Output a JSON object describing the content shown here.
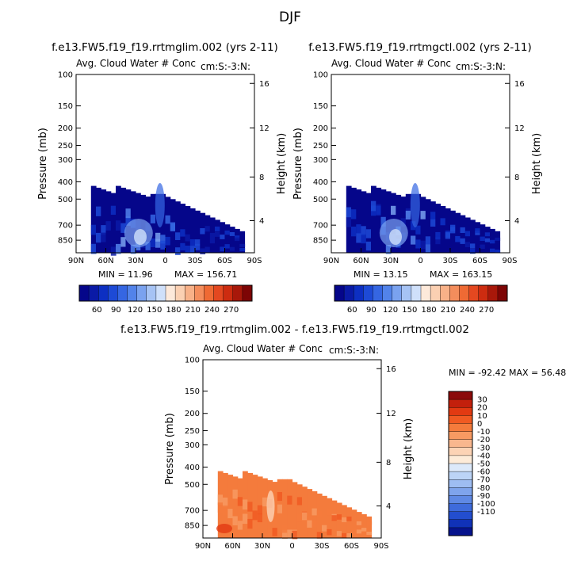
{
  "main_title": "DJF",
  "colors": {
    "blue_scale": [
      "#05068a",
      "#0a1aa6",
      "#0d2fc2",
      "#1d4ad6",
      "#3566e2",
      "#5283ea",
      "#7aa2ef",
      "#a6c3f4",
      "#cfe0fa",
      "#fde9da",
      "#fbd0b2",
      "#f8b188",
      "#f48d5c",
      "#ef6a34",
      "#e44820",
      "#cd2c10",
      "#a8180a",
      "#7d0505"
    ],
    "diff_scale": [
      "#8b0a0a",
      "#c3200c",
      "#e23a12",
      "#f05a22",
      "#f47b3c",
      "#f79a62",
      "#f9b78e",
      "#fcd3b5",
      "#fdebd8",
      "#dce9fa",
      "#bcd4f6",
      "#9ebdf2",
      "#7fa4ec",
      "#5f89e4",
      "#3e6bdb",
      "#234ecf",
      "#1032b8",
      "#06138c"
    ]
  },
  "chart_data": [
    {
      "type": "heatmap",
      "title": "f.e13.FW5.f19_f19.rrtmglim.002 (yrs 2-11)",
      "subtitle": "Avg. Cloud Water # Conc",
      "subtitle_right": "cm:S:-3:N:",
      "xlabel": "",
      "ylabel": "Pressure (mb)",
      "ylabel_right": "Height (km)",
      "x_ticks": [
        "90N",
        "60N",
        "30N",
        "0",
        "30S",
        "60S",
        "90S"
      ],
      "y_ticks": [
        "100",
        "150",
        "200",
        "250",
        "300",
        "400",
        "500",
        "700",
        "850"
      ],
      "y_right_ticks": [
        "16",
        "12",
        "8",
        "4"
      ],
      "min": "MIN = 11.96",
      "max": "MAX = 156.71",
      "colorbar_labels": [
        "60",
        "90",
        "120",
        "150",
        "180",
        "210",
        "240",
        "270"
      ],
      "grid": false
    },
    {
      "type": "heatmap",
      "title": "f.e13.FW5.f19_f19.rrtmgctl.002 (yrs 2-11)",
      "subtitle": "Avg. Cloud Water # Conc",
      "subtitle_right": "cm:S:-3:N:",
      "xlabel": "",
      "ylabel": "Pressure (mb)",
      "ylabel_right": "Height (km)",
      "x_ticks": [
        "90N",
        "60N",
        "30N",
        "0",
        "30S",
        "60S",
        "90S"
      ],
      "y_ticks": [
        "100",
        "150",
        "200",
        "250",
        "300",
        "400",
        "500",
        "700",
        "850"
      ],
      "y_right_ticks": [
        "16",
        "12",
        "8",
        "4"
      ],
      "min": "MIN = 13.15",
      "max": "MAX = 163.15",
      "colorbar_labels": [
        "60",
        "90",
        "120",
        "150",
        "180",
        "210",
        "240",
        "270"
      ],
      "grid": false
    },
    {
      "type": "heatmap",
      "title": "f.e13.FW5.f19_f19.rrtmglim.002 - f.e13.FW5.f19_f19.rrtmgctl.002",
      "subtitle": "Avg. Cloud Water # Conc",
      "subtitle_right": "cm:S:-3:N:",
      "xlabel": "",
      "ylabel": "Pressure (mb)",
      "ylabel_right": "Height (km)",
      "x_ticks": [
        "90N",
        "60N",
        "30N",
        "0",
        "30S",
        "60S",
        "90S"
      ],
      "y_ticks": [
        "100",
        "150",
        "200",
        "250",
        "300",
        "400",
        "500",
        "700",
        "850"
      ],
      "y_right_ticks": [
        "16",
        "12",
        "8",
        "4"
      ],
      "min": "MIN = -92.42",
      "max": "MAX = 56.48",
      "colorbar_labels": [
        "30",
        "20",
        "10",
        "0",
        "-10",
        "-20",
        "-30",
        "-40",
        "-50",
        "-60",
        "-70",
        "-80",
        "-90",
        "-100",
        "-110"
      ],
      "grid": false
    }
  ]
}
